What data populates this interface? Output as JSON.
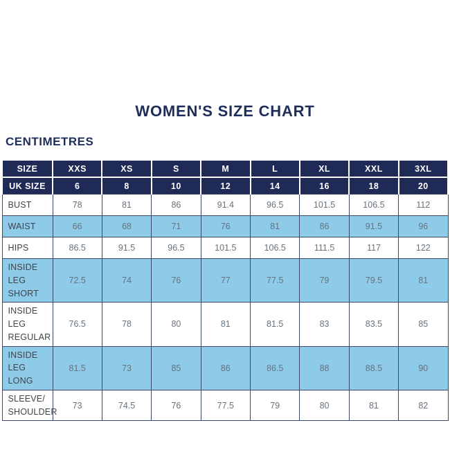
{
  "page": {
    "title": "WOMEN'S SIZE CHART",
    "unit_label": "CENTIMETRES"
  },
  "colors": {
    "navy_header": "#1f2b56",
    "title_text": "#1f2d5a",
    "row_light_blue": "#8ecbe9",
    "row_white": "#ffffff",
    "body_border": "#3a4769",
    "label_text": "#3f4449",
    "value_text": "#66727d",
    "header_text": "#ffffff"
  },
  "chart_data": {
    "type": "table",
    "title": "WOMEN'S SIZE CHART",
    "units": "CENTIMETRES",
    "header_rows": [
      {
        "label": "SIZE",
        "values": [
          "XXS",
          "XS",
          "S",
          "M",
          "L",
          "XL",
          "XXL",
          "3XL"
        ]
      },
      {
        "label": "UK SIZE",
        "values": [
          "6",
          "8",
          "10",
          "12",
          "14",
          "16",
          "18",
          "20"
        ]
      }
    ],
    "rows": [
      {
        "label": "BUST",
        "label_lines": [
          "BUST"
        ],
        "values": [
          "78",
          "81",
          "86",
          "91.4",
          "96.5",
          "101.5",
          "106.5",
          "112"
        ]
      },
      {
        "label": "WAIST",
        "label_lines": [
          "WAIST"
        ],
        "values": [
          "66",
          "68",
          "71",
          "76",
          "81",
          "86",
          "91.5",
          "96"
        ]
      },
      {
        "label": "HIPS",
        "label_lines": [
          "HIPS"
        ],
        "values": [
          "86.5",
          "91.5",
          "96.5",
          "101.5",
          "106.5",
          "111.5",
          "117",
          "122"
        ]
      },
      {
        "label": "INSIDE LEG SHORT",
        "label_lines": [
          "INSIDE LEG",
          "SHORT"
        ],
        "values": [
          "72.5",
          "74",
          "76",
          "77",
          "77.5",
          "79",
          "79.5",
          "81"
        ]
      },
      {
        "label": "INSIDE LEG REGULAR",
        "label_lines": [
          "INSIDE LEG",
          "REGULAR"
        ],
        "values": [
          "76.5",
          "78",
          "80",
          "81",
          "81.5",
          "83",
          "83.5",
          "85"
        ]
      },
      {
        "label": "INSIDE LEG LONG",
        "label_lines": [
          "INSIDE LEG",
          "LONG"
        ],
        "values": [
          "81.5",
          "73",
          "85",
          "86",
          "86.5",
          "88",
          "88.5",
          "90"
        ]
      },
      {
        "label": "SLEEVE/SHOULDER",
        "label_lines": [
          "SLEEVE/",
          "SHOULDER"
        ],
        "values": [
          "73",
          "74.5",
          "76",
          "77.5",
          "79",
          "80",
          "81",
          "82"
        ]
      }
    ]
  }
}
